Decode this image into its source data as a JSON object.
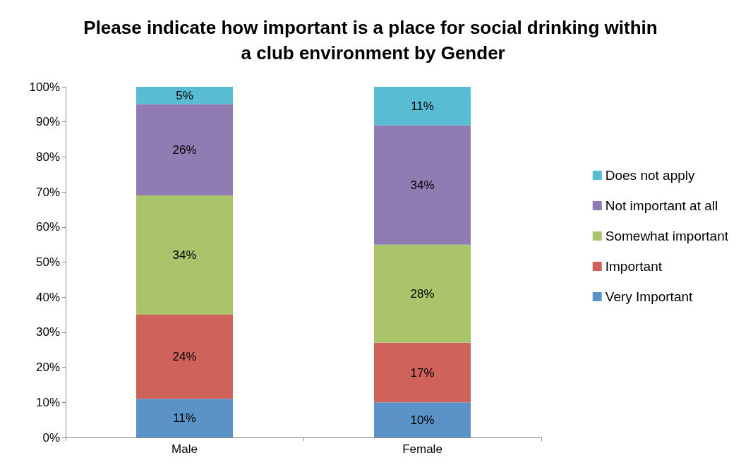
{
  "chart_data": {
    "type": "bar",
    "title": "Please indicate how important is a place for social drinking within a club environment by Gender",
    "categories": [
      "Male",
      "Female"
    ],
    "stacked": true,
    "legend": "right",
    "grid": false,
    "ylim": [
      0,
      100
    ],
    "yticks": [
      {
        "value": 0,
        "label": "0%"
      },
      {
        "value": 10,
        "label": "10%"
      },
      {
        "value": 20,
        "label": "20%"
      },
      {
        "value": 30,
        "label": "30%"
      },
      {
        "value": 40,
        "label": "40%"
      },
      {
        "value": 50,
        "label": "50%"
      },
      {
        "value": 60,
        "label": "60%"
      },
      {
        "value": 70,
        "label": "70%"
      },
      {
        "value": 80,
        "label": "80%"
      },
      {
        "value": 90,
        "label": "90%"
      },
      {
        "value": 100,
        "label": "100%"
      }
    ],
    "series": [
      {
        "name": "Very Important",
        "color": "#5b93c8",
        "values": [
          11,
          10
        ],
        "value_labels": [
          "11%",
          "10%"
        ]
      },
      {
        "name": "Important",
        "color": "#d0625c",
        "values": [
          24,
          17
        ],
        "value_labels": [
          "24%",
          "17%"
        ]
      },
      {
        "name": "Somewhat important",
        "color": "#a9c46a",
        "values": [
          34,
          28
        ],
        "value_labels": [
          "34%",
          "28%"
        ]
      },
      {
        "name": "Not important at all",
        "color": "#917bb3",
        "values": [
          26,
          34
        ],
        "value_labels": [
          "26%",
          "34%"
        ]
      },
      {
        "name": "Does not apply",
        "color": "#58bcd3",
        "values": [
          5,
          11
        ],
        "value_labels": [
          "5%",
          "11%"
        ]
      }
    ]
  }
}
